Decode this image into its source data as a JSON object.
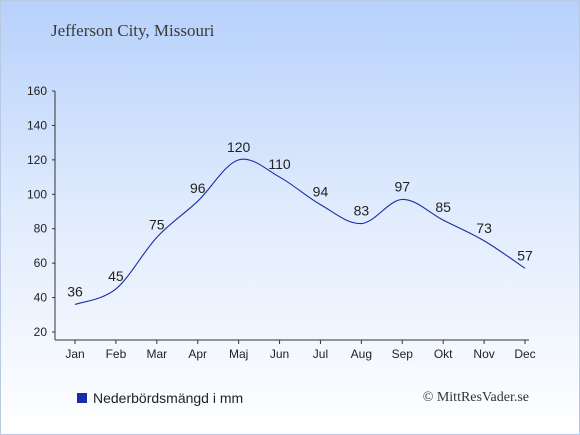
{
  "header": {
    "title": "Jefferson City, Missouri"
  },
  "legend": {
    "label": "Nederbördsmängd i mm",
    "swatch_color": "#1a2da8"
  },
  "credit": "© MittResVader.se",
  "chart_data": {
    "type": "line",
    "title": "Jefferson City, Missouri",
    "xlabel": "",
    "ylabel": "",
    "categories": [
      "Jan",
      "Feb",
      "Mar",
      "Apr",
      "Maj",
      "Jun",
      "Jul",
      "Aug",
      "Sep",
      "Okt",
      "Nov",
      "Dec"
    ],
    "series": [
      {
        "name": "Nederbördsmängd i mm",
        "values": [
          36,
          45,
          75,
          96,
          120,
          110,
          94,
          83,
          97,
          85,
          73,
          57
        ],
        "color": "#1a2da8"
      }
    ],
    "ylim": [
      20,
      160
    ],
    "yticks": [
      20,
      40,
      60,
      80,
      100,
      120,
      140,
      160
    ],
    "grid": false,
    "legend_position": "bottom-left"
  }
}
